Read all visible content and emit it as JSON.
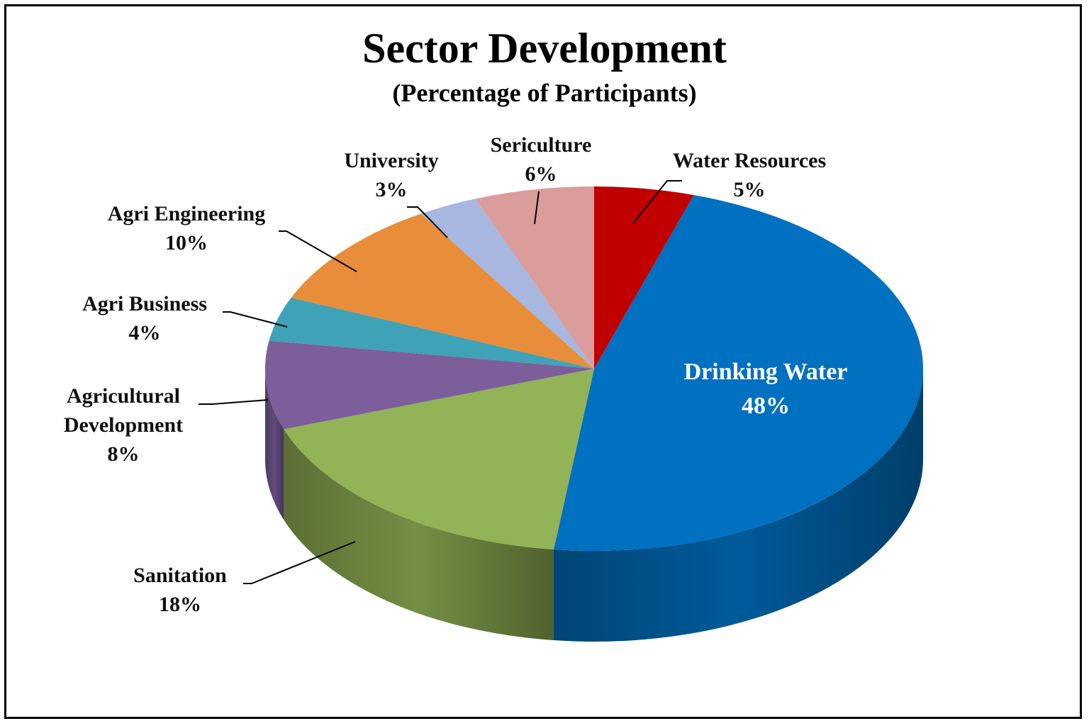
{
  "chart_data": {
    "type": "pie",
    "title": "Sector Development",
    "subtitle": "(Percentage of Participants)",
    "three_d": true,
    "slices": [
      {
        "label": "Water Resources",
        "value": 5,
        "value_label": "5%",
        "color": "#C00000"
      },
      {
        "label": "Drinking Water",
        "value": 48,
        "value_label": "48%",
        "color": "#0070C0"
      },
      {
        "label": "Sanitation",
        "value": 18,
        "value_label": "18%",
        "color": "#92B356"
      },
      {
        "label": "Agricultural Development",
        "value": 8,
        "value_label": "8%",
        "color": "#7B5E9A"
      },
      {
        "label": "Agri Business",
        "value": 4,
        "value_label": "4%",
        "color": "#3FA2B7"
      },
      {
        "label": "Agri Engineering",
        "value": 10,
        "value_label": "10%",
        "color": "#E88D3A"
      },
      {
        "label": "University",
        "value": 3,
        "value_label": "3%",
        "color": "#A7B7DF"
      },
      {
        "label": "Sericulture",
        "value": 6,
        "value_label": "6%",
        "color": "#DB9C9C"
      }
    ]
  }
}
